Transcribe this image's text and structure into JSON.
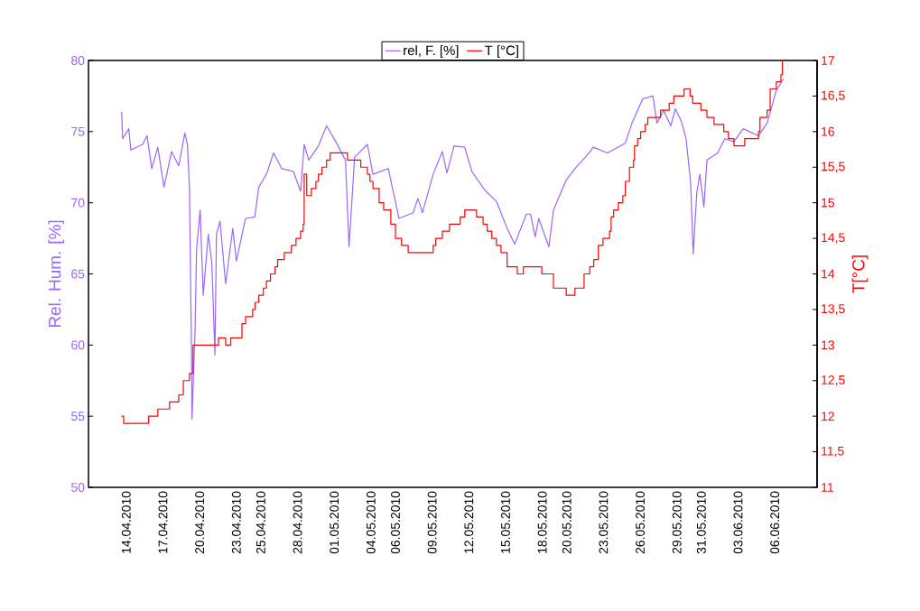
{
  "chart_data": {
    "type": "line",
    "ylabel": "Rel. Hum. [%]",
    "y2label": "T[°C]",
    "xlim": [
      "2010-04-10T22:00",
      "2010-06-09T11:00"
    ],
    "xticks": [
      {
        "value": "2010-04-14",
        "label": "14.04.2010"
      },
      {
        "value": "2010-04-17",
        "label": "17.04.2010"
      },
      {
        "value": "2010-04-20",
        "label": "20.04.2010"
      },
      {
        "value": "2010-04-23",
        "label": "23.04.2010"
      },
      {
        "value": "2010-04-25",
        "label": "25.04.2010"
      },
      {
        "value": "2010-04-28",
        "label": "28.04.2010"
      },
      {
        "value": "2010-05-01",
        "label": "01.05.2010"
      },
      {
        "value": "2010-05-04",
        "label": "04.05.2010"
      },
      {
        "value": "2010-05-06",
        "label": "06.05.2010"
      },
      {
        "value": "2010-05-09",
        "label": "09.05.2010"
      },
      {
        "value": "2010-05-12",
        "label": "12.05.2010"
      },
      {
        "value": "2010-05-15",
        "label": "15.05.2010"
      },
      {
        "value": "2010-05-18",
        "label": "18.05.2010"
      },
      {
        "value": "2010-05-20",
        "label": "20.05.2010"
      },
      {
        "value": "2010-05-23",
        "label": "23.05.2010"
      },
      {
        "value": "2010-05-26",
        "label": "26.05.2010"
      },
      {
        "value": "2010-05-29",
        "label": "29.05.2010"
      },
      {
        "value": "2010-05-31",
        "label": "31.05.2010"
      },
      {
        "value": "2010-06-03",
        "label": "03.06.2010"
      },
      {
        "value": "2010-06-06",
        "label": "06.06.2010"
      }
    ],
    "ylim": [
      50,
      80
    ],
    "yticks": [
      50,
      55,
      60,
      65,
      70,
      75,
      80
    ],
    "y2lim": [
      11,
      17
    ],
    "y2ticks": [
      11,
      {
        "value": 11.5,
        "label": "11,5"
      },
      12,
      {
        "value": 12.5,
        "label": "12,5"
      },
      13,
      {
        "value": 13.5,
        "label": "13,5"
      },
      14,
      {
        "value": 14.5,
        "label": "14,5"
      },
      15,
      {
        "value": 15.5,
        "label": "15,5"
      },
      16,
      {
        "value": 16.5,
        "label": "16,5"
      },
      17
    ],
    "legend": "top",
    "series": [
      {
        "name": "rel, F. [%]",
        "color": "#9966ff",
        "axis": "y",
        "x": [
          "2010-04-13T15:00",
          "2010-04-13T17:00",
          "2010-04-14T05:00",
          "2010-04-14T09:00",
          "2010-04-15T08:00",
          "2010-04-15T17:00",
          "2010-04-16T02:00",
          "2010-04-16T14:00",
          "2010-04-17T02:00",
          "2010-04-17T17:00",
          "2010-04-18T07:00",
          "2010-04-18T19:00",
          "2010-04-19T00:00",
          "2010-04-19T04:00",
          "2010-04-19T08:00",
          "2010-04-19T09:00",
          "2010-04-19T15:00",
          "2010-04-19T18:00",
          "2010-04-20T01:00",
          "2010-04-20T07:00",
          "2010-04-20T17:00",
          "2010-04-21T00:00",
          "2010-04-21T06:00",
          "2010-04-21T09:00",
          "2010-04-21T16:00",
          "2010-04-22T03:00",
          "2010-04-22T17:00",
          "2010-04-23T00:00",
          "2010-04-23T18:00",
          "2010-04-24T12:00",
          "2010-04-24T20:00",
          "2010-04-25T11:00",
          "2010-04-26T01:00",
          "2010-04-26T17:00",
          "2010-04-27T16:00",
          "2010-04-28T06:00",
          "2010-04-28T13:00",
          "2010-04-28T22:00",
          "2010-04-29T17:00",
          "2010-04-30T09:00",
          "2010-05-01T03:00",
          "2010-05-01T22:00",
          "2010-05-02T05:00",
          "2010-05-02T16:00",
          "2010-05-03T17:00",
          "2010-05-04T04:00",
          "2010-05-05T10:00",
          "2010-05-06T07:00",
          "2010-05-07T11:00",
          "2010-05-07T20:00",
          "2010-05-08T05:00",
          "2010-05-09T02:00",
          "2010-05-09T20:00",
          "2010-05-10T05:00",
          "2010-05-10T19:00",
          "2010-05-11T16:00",
          "2010-05-12T06:00",
          "2010-05-13T07:00",
          "2010-05-14T06:00",
          "2010-05-15T03:00",
          "2010-05-15T18:00",
          "2010-05-16T17:00",
          "2010-05-17T01:00",
          "2010-05-17T10:00",
          "2010-05-17T17:00",
          "2010-05-18T13:00",
          "2010-05-18T22:00",
          "2010-05-19T23:00",
          "2010-05-20T16:00",
          "2010-05-21T15:00",
          "2010-05-22T04:00",
          "2010-05-23T08:00",
          "2010-05-24T19:00",
          "2010-05-25T08:00",
          "2010-05-26T05:00",
          "2010-05-27T01:00",
          "2010-05-27T09:00",
          "2010-05-27T22:00",
          "2010-05-28T12:00",
          "2010-05-28T21:00",
          "2010-05-29T09:00",
          "2010-05-29T18:00",
          "2010-05-30T03:00",
          "2010-05-30T08:00",
          "2010-05-30T15:00",
          "2010-05-30T21:00",
          "2010-05-31T05:00",
          "2010-05-31T11:00",
          "2010-06-01T08:00",
          "2010-06-01T22:00",
          "2010-06-02T16:00",
          "2010-06-03T10:00",
          "2010-06-04T16:00",
          "2010-06-05T09:00",
          "2010-06-06T03:00",
          "2010-06-06T17:00"
        ],
        "values": [
          76.4,
          74.5,
          75.2,
          73.7,
          74.1,
          74.7,
          72.4,
          73.9,
          71.1,
          73.6,
          72.6,
          74.9,
          74.1,
          71.1,
          59.7,
          54.8,
          61.0,
          66.7,
          69.5,
          63.5,
          67.8,
          65.7,
          59.3,
          67.8,
          68.7,
          64.3,
          68.2,
          65.9,
          68.9,
          69.0,
          71.1,
          72.0,
          73.5,
          72.4,
          72.2,
          70.8,
          74.1,
          73.0,
          74.0,
          75.4,
          74.3,
          73.0,
          66.9,
          73.2,
          74.1,
          72.0,
          72.4,
          68.9,
          69.3,
          70.3,
          69.3,
          72.0,
          73.6,
          72.1,
          74.0,
          73.9,
          72.2,
          70.9,
          70.1,
          68.2,
          67.1,
          69.2,
          69.2,
          67.6,
          68.9,
          66.9,
          69.5,
          71.6,
          72.4,
          73.3,
          73.9,
          73.5,
          74.2,
          75.6,
          77.3,
          77.5,
          75.6,
          76.5,
          75.4,
          76.6,
          75.7,
          74.5,
          71.4,
          66.4,
          70.7,
          72.0,
          69.7,
          73.0,
          73.5,
          74.5,
          74.3,
          75.2,
          74.7,
          75.6,
          77.9,
          78.7
        ]
      },
      {
        "name": "T [°C]",
        "color": "#ff0000",
        "type": "step",
        "axis": "y2",
        "x": [
          "2010-04-13T15:00",
          "2010-04-13T19:00",
          "2010-04-15T20:00",
          "2010-04-16T14:00",
          "2010-04-17T13:00",
          "2010-04-18T07:00",
          "2010-04-18T16:00",
          "2010-04-19T04:00",
          "2010-04-19T11:00",
          "2010-04-21T13:00",
          "2010-04-22T03:00",
          "2010-04-22T13:00",
          "2010-04-23T11:00",
          "2010-04-23T18:00",
          "2010-04-24T08:00",
          "2010-04-24T13:00",
          "2010-04-24T20:00",
          "2010-04-25T05:00",
          "2010-04-25T11:00",
          "2010-04-25T19:00",
          "2010-04-26T04:00",
          "2010-04-26T09:00",
          "2010-04-26T22:00",
          "2010-04-27T12:00",
          "2010-04-27T21:00",
          "2010-04-28T06:00",
          "2010-04-28T11:00",
          "2010-04-28T13:00",
          "2010-04-28T18:00",
          "2010-04-29T03:00",
          "2010-04-29T12:00",
          "2010-04-29T17:00",
          "2010-04-30T00:00",
          "2010-04-30T09:00",
          "2010-04-30T16:00",
          "2010-05-02T02:00",
          "2010-05-03T04:00",
          "2010-05-03T17:00",
          "2010-05-03T22:00",
          "2010-05-04T04:00",
          "2010-05-04T16:00",
          "2010-05-05T01:00",
          "2010-05-05T15:00",
          "2010-05-06T00:00",
          "2010-05-06T12:00",
          "2010-05-07T01:00",
          "2010-05-09T02:00",
          "2010-05-09T07:00",
          "2010-05-09T20:00",
          "2010-05-10T10:00",
          "2010-05-11T07:00",
          "2010-05-11T16:00",
          "2010-05-12T15:00",
          "2010-05-13T04:00",
          "2010-05-13T12:00",
          "2010-05-13T21:00",
          "2010-05-14T06:00",
          "2010-05-14T15:00",
          "2010-05-15T03:00",
          "2010-05-15T23:00",
          "2010-05-16T11:00",
          "2010-05-17T23:00",
          "2010-05-18T22:00",
          "2010-05-19T23:00",
          "2010-05-20T16:00",
          "2010-05-21T10:00",
          "2010-05-21T21:00",
          "2010-05-22T05:00",
          "2010-05-22T14:00",
          "2010-05-22T23:00",
          "2010-05-23T12:00",
          "2010-05-23T15:00",
          "2010-05-23T20:00",
          "2010-05-24T05:00",
          "2010-05-24T14:00",
          "2010-05-24T19:00",
          "2010-05-25T03:00",
          "2010-05-25T11:00",
          "2010-05-25T13:00",
          "2010-05-25T19:00",
          "2010-05-26T01:00",
          "2010-05-26T10:00",
          "2010-05-26T15:00",
          "2010-05-27T16:00",
          "2010-05-28T09:00",
          "2010-05-28T18:00",
          "2010-05-29T14:00",
          "2010-05-30T02:00",
          "2010-05-30T07:00",
          "2010-05-30T23:00",
          "2010-05-31T11:00",
          "2010-06-01T01:00",
          "2010-06-01T20:00",
          "2010-06-02T05:00",
          "2010-06-02T16:00",
          "2010-06-03T13:00",
          "2010-06-04T16:00",
          "2010-06-04T19:00",
          "2010-06-05T09:00",
          "2010-06-05T15:00",
          "2010-06-06T03:00",
          "2010-06-06T12:00",
          "2010-06-06T15:00"
        ],
        "values": [
          12.0,
          11.9,
          12.0,
          12.1,
          12.2,
          12.3,
          12.5,
          12.6,
          13.0,
          13.1,
          13.0,
          13.1,
          13.3,
          13.4,
          13.5,
          13.6,
          13.7,
          13.8,
          13.9,
          14.0,
          14.1,
          14.2,
          14.3,
          14.4,
          14.5,
          14.6,
          14.7,
          15.4,
          15.1,
          15.2,
          15.3,
          15.4,
          15.5,
          15.6,
          15.7,
          15.6,
          15.5,
          15.4,
          15.3,
          15.2,
          15.0,
          14.9,
          14.7,
          14.5,
          14.4,
          14.3,
          14.4,
          14.5,
          14.6,
          14.7,
          14.8,
          14.9,
          14.8,
          14.7,
          14.6,
          14.5,
          14.4,
          14.3,
          14.1,
          14.0,
          14.1,
          14.0,
          13.8,
          13.7,
          13.8,
          14.0,
          14.1,
          14.2,
          14.4,
          14.5,
          14.6,
          14.8,
          14.9,
          15.0,
          15.1,
          15.3,
          15.5,
          15.6,
          15.8,
          15.9,
          16.0,
          16.1,
          16.2,
          16.3,
          16.4,
          16.5,
          16.6,
          16.5,
          16.4,
          16.3,
          16.2,
          16.1,
          16.0,
          15.9,
          15.8,
          15.9,
          16.0,
          16.2,
          16.3,
          16.6,
          16.7,
          16.8,
          17.0
        ]
      }
    ]
  }
}
